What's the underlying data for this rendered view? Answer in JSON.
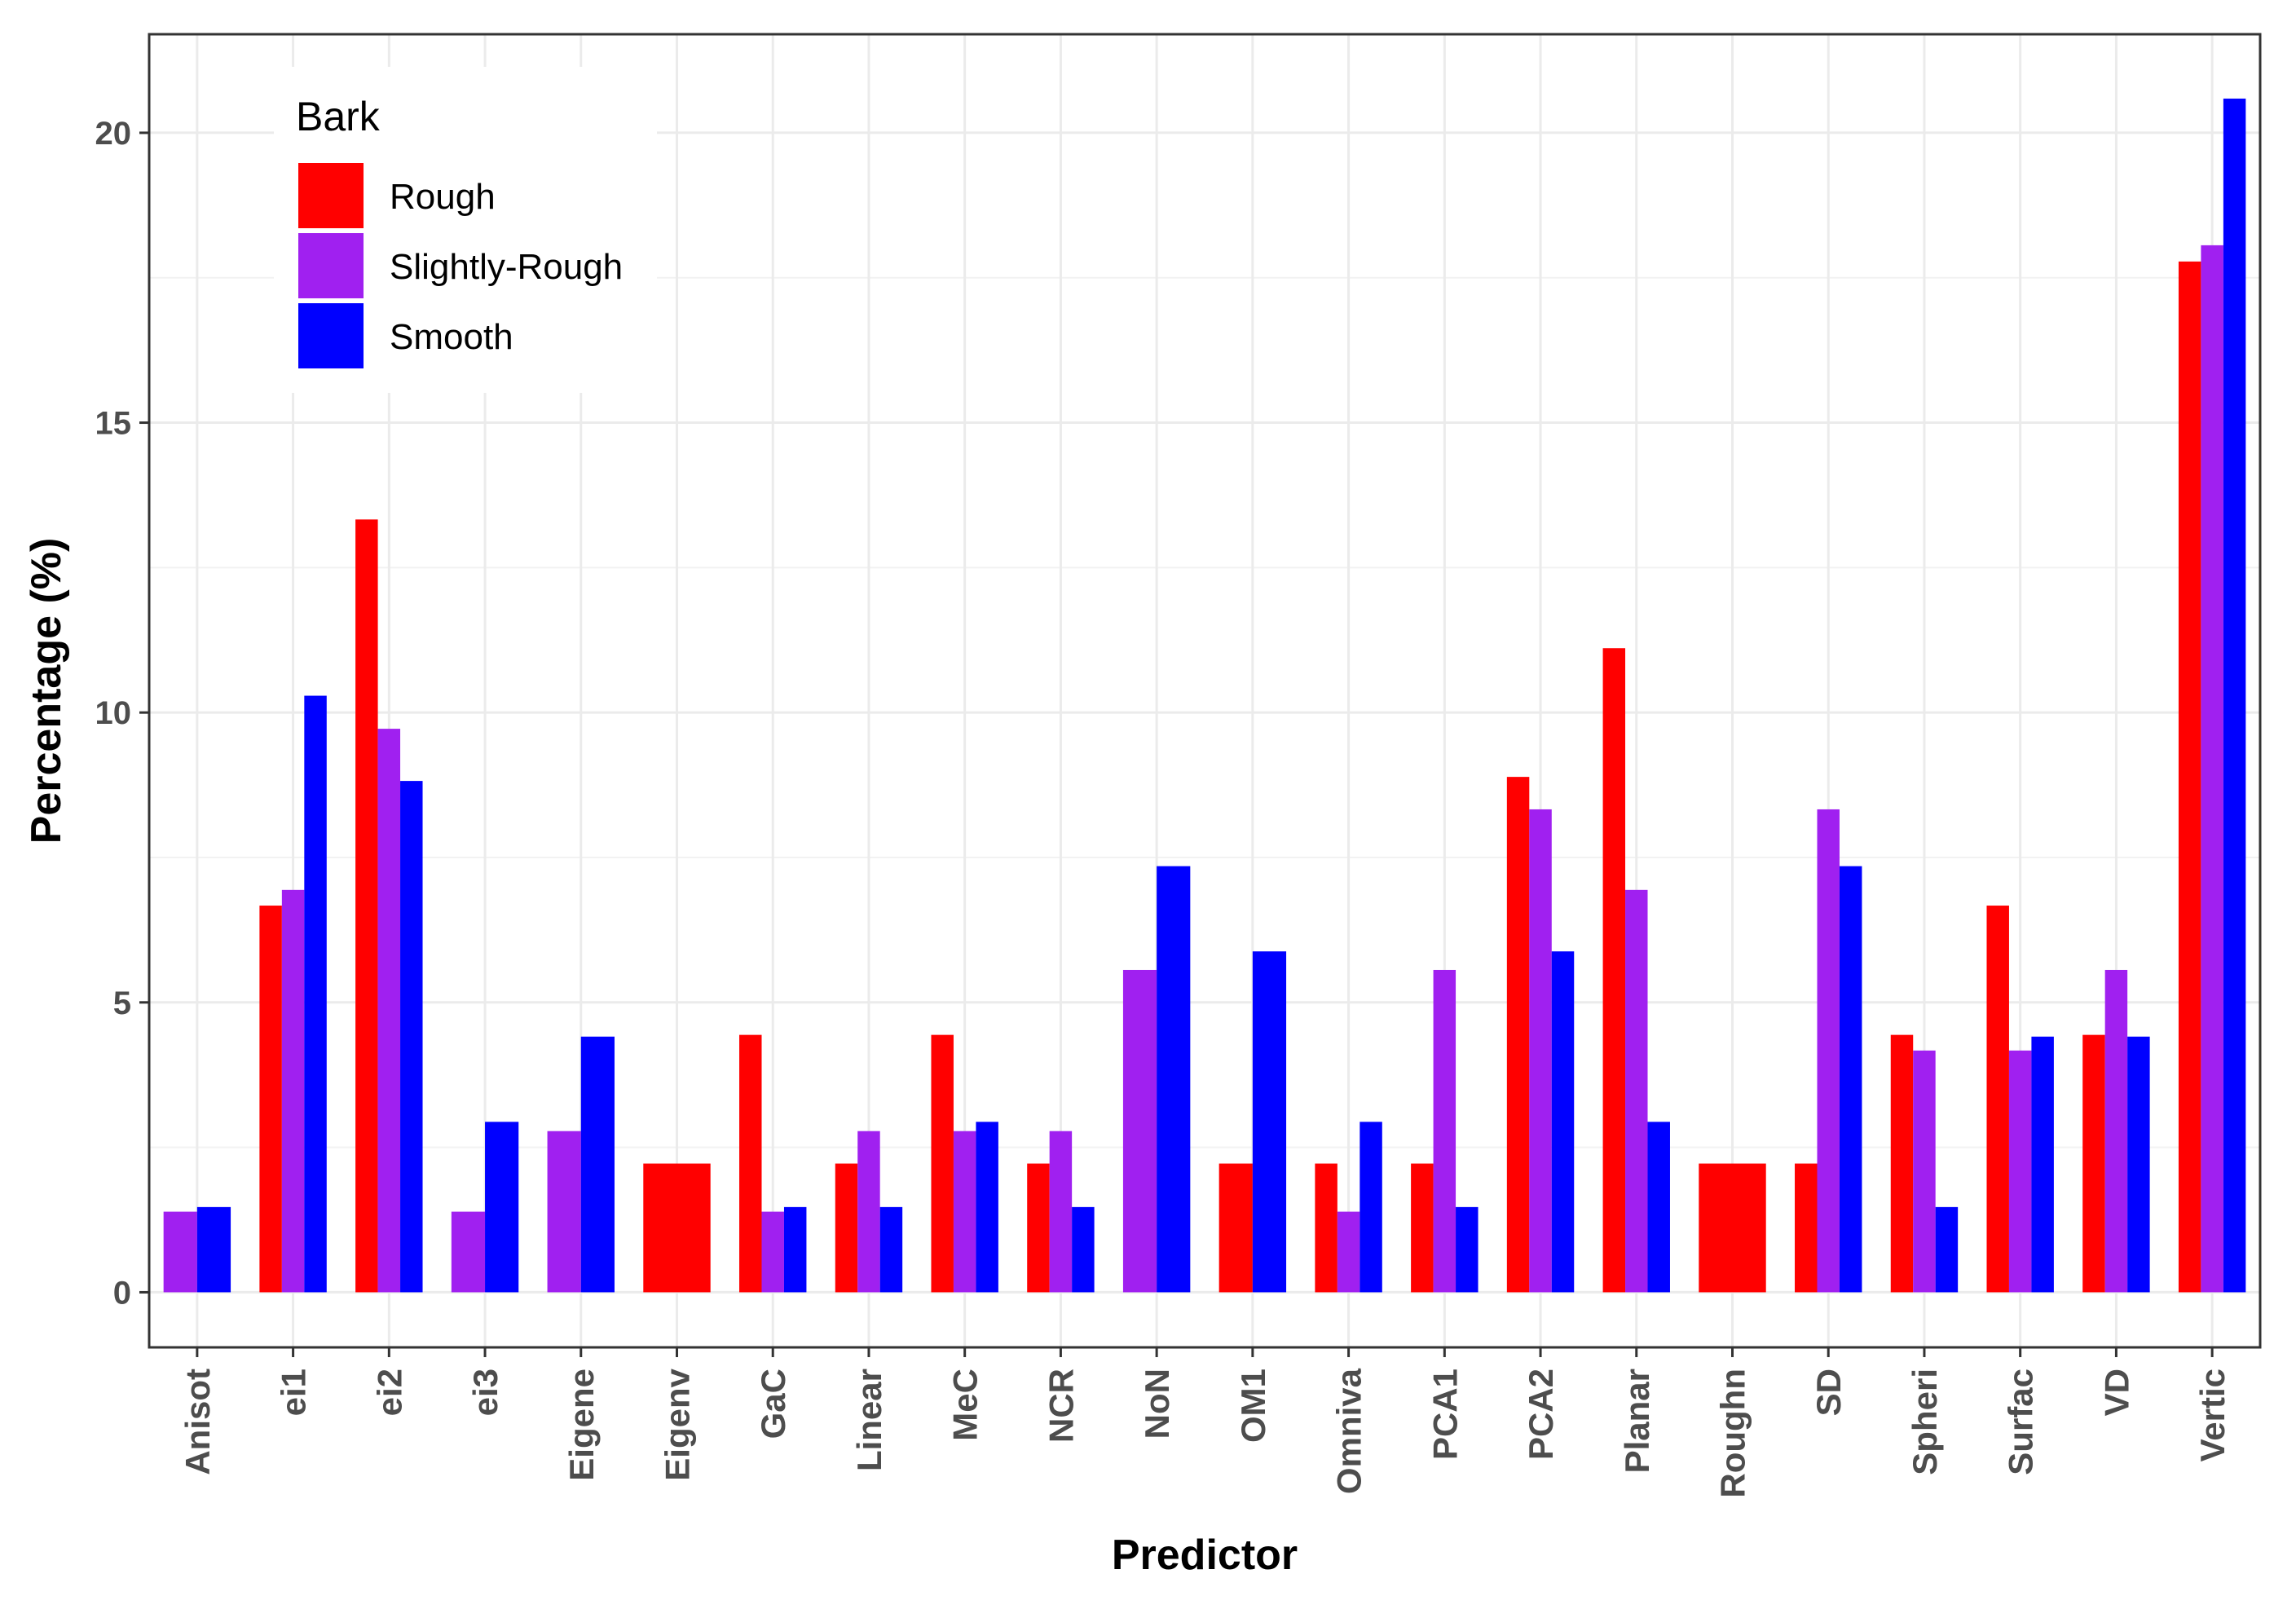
{
  "chart_data": {
    "type": "bar",
    "title": "",
    "xlabel": "Predictor",
    "ylabel": "Percentage (%)",
    "ylim": [
      -0.95,
      21.7
    ],
    "yticks": [
      0,
      5,
      10,
      15,
      20
    ],
    "grid": true,
    "legend": {
      "title": "Bark",
      "position": "top-left"
    },
    "categories": [
      "Anisot",
      "ei1",
      "ei2",
      "ei3",
      "Eigene",
      "Eigenv",
      "GaC",
      "Linear",
      "MeC",
      "NCR",
      "NoN",
      "OM1",
      "Omniva",
      "PCA1",
      "PCA2",
      "Planar",
      "Roughn",
      "SD",
      "Spheri",
      "Surfac",
      "VD",
      "Vertic"
    ],
    "series": [
      {
        "name": "Rough",
        "color": "#ff0000",
        "values": [
          null,
          6.67,
          13.33,
          null,
          null,
          2.22,
          4.44,
          2.22,
          4.44,
          2.22,
          null,
          2.22,
          2.22,
          2.22,
          8.89,
          11.11,
          2.22,
          2.22,
          4.44,
          6.67,
          4.44,
          17.78
        ]
      },
      {
        "name": "Slightly-Rough",
        "color": "#a020f0",
        "values": [
          1.39,
          6.94,
          9.72,
          1.39,
          2.78,
          null,
          1.39,
          2.78,
          2.78,
          2.78,
          5.56,
          null,
          1.39,
          5.56,
          8.33,
          6.94,
          null,
          8.33,
          4.17,
          4.17,
          5.56,
          18.06
        ]
      },
      {
        "name": "Smooth",
        "color": "#0000ff",
        "values": [
          1.47,
          10.29,
          8.82,
          2.94,
          4.41,
          null,
          1.47,
          1.47,
          2.94,
          1.47,
          7.35,
          5.88,
          2.94,
          1.47,
          5.88,
          2.94,
          null,
          7.35,
          1.47,
          4.41,
          4.41,
          20.59
        ]
      }
    ]
  }
}
